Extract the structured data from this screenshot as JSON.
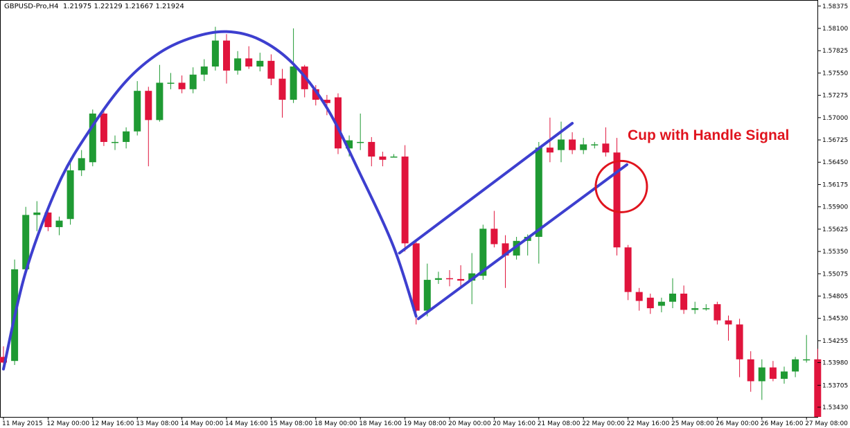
{
  "header": {
    "symbol": "GBPUSD-Pro,H4",
    "ohlc": "1.21975 1.22129 1.21667 1.21924"
  },
  "annotation": {
    "label": "Cup with Handle Signal"
  },
  "colors": {
    "bull": "#1f9a33",
    "bear": "#e0143c",
    "pattern_lines": "#3d3fcf",
    "signal_circle": "#e0141e",
    "callout_text": "#e0141e"
  },
  "chart_data": {
    "type": "candlestick",
    "title": "GBPUSD-Pro,H4",
    "ylim": [
      1.5331,
      1.5845
    ],
    "y_ticks": [
      1.58375,
      1.581,
      1.57825,
      1.5755,
      1.57275,
      1.57,
      1.56725,
      1.5645,
      1.56175,
      1.559,
      1.55625,
      1.5535,
      1.55075,
      1.548,
      1.54525,
      1.5425,
      1.5398,
      1.537,
      1.5343
    ],
    "y_tick_labels": [
      "1.58375",
      "1.58100",
      "1.57825",
      "1.57550",
      "1.57275",
      "1.57000",
      "1.56725",
      "1.56450",
      "1.56175",
      "1.55900",
      "1.55625",
      "1.55350",
      "1.55075",
      "1.54805",
      "1.54530",
      "1.54255",
      "1.53980",
      "1.53705",
      "1.53430"
    ],
    "x_tick_labels": [
      {
        "index": 0,
        "label": "11 May 2015"
      },
      {
        "index": 4,
        "label": "12 May 00:00"
      },
      {
        "index": 8,
        "label": "12 May 16:00"
      },
      {
        "index": 12,
        "label": "13 May 08:00"
      },
      {
        "index": 16,
        "label": "14 May 00:00"
      },
      {
        "index": 20,
        "label": "14 May 16:00"
      },
      {
        "index": 24,
        "label": "15 May 08:00"
      },
      {
        "index": 28,
        "label": "18 May 00:00"
      },
      {
        "index": 32,
        "label": "18 May 16:00"
      },
      {
        "index": 36,
        "label": "19 May 08:00"
      },
      {
        "index": 40,
        "label": "20 May 00:00"
      },
      {
        "index": 44,
        "label": "20 May 16:00"
      },
      {
        "index": 48,
        "label": "21 May 08:00"
      },
      {
        "index": 52,
        "label": "22 May 00:00"
      },
      {
        "index": 56,
        "label": "22 May 16:00"
      },
      {
        "index": 60,
        "label": "25 May 08:00"
      },
      {
        "index": 64,
        "label": "26 May 00:00"
      },
      {
        "index": 68,
        "label": "26 May 16:00"
      },
      {
        "index": 72,
        "label": "27 May 08:00"
      }
    ],
    "candles": [
      {
        "o": 1.5405,
        "h": 1.5418,
        "l": 1.539,
        "c": 1.5398
      },
      {
        "o": 1.54,
        "h": 1.5525,
        "l": 1.5395,
        "c": 1.5513
      },
      {
        "o": 1.5513,
        "h": 1.559,
        "l": 1.5508,
        "c": 1.558
      },
      {
        "o": 1.558,
        "h": 1.5597,
        "l": 1.556,
        "c": 1.5583
      },
      {
        "o": 1.5583,
        "h": 1.5588,
        "l": 1.556,
        "c": 1.5565
      },
      {
        "o": 1.5565,
        "h": 1.5578,
        "l": 1.5555,
        "c": 1.5573
      },
      {
        "o": 1.5575,
        "h": 1.565,
        "l": 1.5568,
        "c": 1.5635
      },
      {
        "o": 1.5635,
        "h": 1.566,
        "l": 1.5628,
        "c": 1.565
      },
      {
        "o": 1.5645,
        "h": 1.571,
        "l": 1.564,
        "c": 1.5705
      },
      {
        "o": 1.5705,
        "h": 1.571,
        "l": 1.5665,
        "c": 1.567
      },
      {
        "o": 1.567,
        "h": 1.5678,
        "l": 1.566,
        "c": 1.567
      },
      {
        "o": 1.567,
        "h": 1.5688,
        "l": 1.5662,
        "c": 1.5683
      },
      {
        "o": 1.5683,
        "h": 1.5745,
        "l": 1.5678,
        "c": 1.5733
      },
      {
        "o": 1.5733,
        "h": 1.5738,
        "l": 1.564,
        "c": 1.5697
      },
      {
        "o": 1.5697,
        "h": 1.5765,
        "l": 1.5695,
        "c": 1.5743
      },
      {
        "o": 1.5743,
        "h": 1.5755,
        "l": 1.5735,
        "c": 1.5743
      },
      {
        "o": 1.5743,
        "h": 1.5752,
        "l": 1.573,
        "c": 1.5735
      },
      {
        "o": 1.5735,
        "h": 1.5762,
        "l": 1.573,
        "c": 1.5753
      },
      {
        "o": 1.5753,
        "h": 1.5772,
        "l": 1.5745,
        "c": 1.5763
      },
      {
        "o": 1.5763,
        "h": 1.5812,
        "l": 1.5758,
        "c": 1.5795
      },
      {
        "o": 1.5795,
        "h": 1.5803,
        "l": 1.5742,
        "c": 1.5758
      },
      {
        "o": 1.5758,
        "h": 1.5782,
        "l": 1.5753,
        "c": 1.5773
      },
      {
        "o": 1.5773,
        "h": 1.5788,
        "l": 1.576,
        "c": 1.5763
      },
      {
        "o": 1.5763,
        "h": 1.578,
        "l": 1.5757,
        "c": 1.577
      },
      {
        "o": 1.577,
        "h": 1.5778,
        "l": 1.574,
        "c": 1.5748
      },
      {
        "o": 1.5748,
        "h": 1.576,
        "l": 1.57,
        "c": 1.5722
      },
      {
        "o": 1.5722,
        "h": 1.581,
        "l": 1.5718,
        "c": 1.5763
      },
      {
        "o": 1.5763,
        "h": 1.5765,
        "l": 1.5725,
        "c": 1.5735
      },
      {
        "o": 1.5735,
        "h": 1.574,
        "l": 1.5715,
        "c": 1.5722
      },
      {
        "o": 1.5722,
        "h": 1.5728,
        "l": 1.5703,
        "c": 1.5718
      },
      {
        "o": 1.5725,
        "h": 1.573,
        "l": 1.5655,
        "c": 1.5662
      },
      {
        "o": 1.5662,
        "h": 1.5678,
        "l": 1.5652,
        "c": 1.5672
      },
      {
        "o": 1.567,
        "h": 1.5705,
        "l": 1.566,
        "c": 1.567
      },
      {
        "o": 1.567,
        "h": 1.5676,
        "l": 1.564,
        "c": 1.5652
      },
      {
        "o": 1.5652,
        "h": 1.5658,
        "l": 1.564,
        "c": 1.5648
      },
      {
        "o": 1.5652,
        "h": 1.5655,
        "l": 1.5652,
        "c": 1.5652
      },
      {
        "o": 1.5652,
        "h": 1.5666,
        "l": 1.5535,
        "c": 1.5545
      },
      {
        "o": 1.5545,
        "h": 1.555,
        "l": 1.5445,
        "c": 1.5462
      },
      {
        "o": 1.5462,
        "h": 1.552,
        "l": 1.5455,
        "c": 1.55
      },
      {
        "o": 1.55,
        "h": 1.551,
        "l": 1.5495,
        "c": 1.5502
      },
      {
        "o": 1.5502,
        "h": 1.5512,
        "l": 1.5492,
        "c": 1.5501
      },
      {
        "o": 1.5501,
        "h": 1.5518,
        "l": 1.549,
        "c": 1.5499
      },
      {
        "o": 1.5499,
        "h": 1.5533,
        "l": 1.547,
        "c": 1.5508
      },
      {
        "o": 1.5505,
        "h": 1.5568,
        "l": 1.55,
        "c": 1.5563
      },
      {
        "o": 1.5563,
        "h": 1.5585,
        "l": 1.554,
        "c": 1.5544
      },
      {
        "o": 1.5545,
        "h": 1.5555,
        "l": 1.549,
        "c": 1.553
      },
      {
        "o": 1.553,
        "h": 1.5553,
        "l": 1.5525,
        "c": 1.5548
      },
      {
        "o": 1.5548,
        "h": 1.5556,
        "l": 1.553,
        "c": 1.5553
      },
      {
        "o": 1.5553,
        "h": 1.567,
        "l": 1.552,
        "c": 1.5663
      },
      {
        "o": 1.5663,
        "h": 1.57,
        "l": 1.5645,
        "c": 1.5657
      },
      {
        "o": 1.566,
        "h": 1.5695,
        "l": 1.5645,
        "c": 1.5673
      },
      {
        "o": 1.5673,
        "h": 1.5682,
        "l": 1.5655,
        "c": 1.566
      },
      {
        "o": 1.566,
        "h": 1.5675,
        "l": 1.5655,
        "c": 1.5667
      },
      {
        "o": 1.5667,
        "h": 1.567,
        "l": 1.5662,
        "c": 1.5667
      },
      {
        "o": 1.5668,
        "h": 1.5688,
        "l": 1.5652,
        "c": 1.5657
      },
      {
        "o": 1.5657,
        "h": 1.5675,
        "l": 1.553,
        "c": 1.554
      },
      {
        "o": 1.554,
        "h": 1.5543,
        "l": 1.5475,
        "c": 1.5485
      },
      {
        "o": 1.5485,
        "h": 1.549,
        "l": 1.5462,
        "c": 1.5474
      },
      {
        "o": 1.5478,
        "h": 1.5483,
        "l": 1.5458,
        "c": 1.5465
      },
      {
        "o": 1.5468,
        "h": 1.5478,
        "l": 1.546,
        "c": 1.5473
      },
      {
        "o": 1.5473,
        "h": 1.5502,
        "l": 1.5465,
        "c": 1.5483
      },
      {
        "o": 1.5483,
        "h": 1.5493,
        "l": 1.5458,
        "c": 1.5463
      },
      {
        "o": 1.5463,
        "h": 1.5473,
        "l": 1.5458,
        "c": 1.5465
      },
      {
        "o": 1.5465,
        "h": 1.547,
        "l": 1.5462,
        "c": 1.5465
      },
      {
        "o": 1.547,
        "h": 1.5473,
        "l": 1.5445,
        "c": 1.545
      },
      {
        "o": 1.545,
        "h": 1.5456,
        "l": 1.5425,
        "c": 1.5445
      },
      {
        "o": 1.5445,
        "h": 1.5452,
        "l": 1.538,
        "c": 1.5402
      },
      {
        "o": 1.5402,
        "h": 1.5412,
        "l": 1.5362,
        "c": 1.5375
      },
      {
        "o": 1.5375,
        "h": 1.5402,
        "l": 1.5352,
        "c": 1.5392
      },
      {
        "o": 1.5392,
        "h": 1.54,
        "l": 1.5375,
        "c": 1.5378
      },
      {
        "o": 1.5378,
        "h": 1.5393,
        "l": 1.5372,
        "c": 1.5387
      },
      {
        "o": 1.5387,
        "h": 1.5405,
        "l": 1.538,
        "c": 1.5402
      },
      {
        "o": 1.5402,
        "h": 1.5432,
        "l": 1.5398,
        "c": 1.5402
      },
      {
        "o": 1.5402,
        "h": 1.5415,
        "l": 1.5331,
        "c": 1.5331
      }
    ],
    "overlays": {
      "cup_arc": [
        {
          "i": 0,
          "y": 1.539
        },
        {
          "i": 2,
          "y": 1.551
        },
        {
          "i": 5,
          "y": 1.562
        },
        {
          "i": 8,
          "y": 1.569
        },
        {
          "i": 11,
          "y": 1.5745
        },
        {
          "i": 14,
          "y": 1.578
        },
        {
          "i": 17,
          "y": 1.5799
        },
        {
          "i": 20,
          "y": 1.5806
        },
        {
          "i": 23,
          "y": 1.5796
        },
        {
          "i": 26,
          "y": 1.5766
        },
        {
          "i": 29,
          "y": 1.5712
        },
        {
          "i": 32,
          "y": 1.563
        },
        {
          "i": 35,
          "y": 1.554
        },
        {
          "i": 37,
          "y": 1.5455
        }
      ],
      "channel_upper": [
        {
          "i": 35.5,
          "y": 1.5533
        },
        {
          "i": 51,
          "y": 1.5693
        }
      ],
      "channel_lower": [
        {
          "i": 37.2,
          "y": 1.5452
        },
        {
          "i": 55.9,
          "y": 1.5642
        }
      ],
      "signal_circle_center": {
        "i": 55.4,
        "y": 1.5615
      }
    }
  }
}
